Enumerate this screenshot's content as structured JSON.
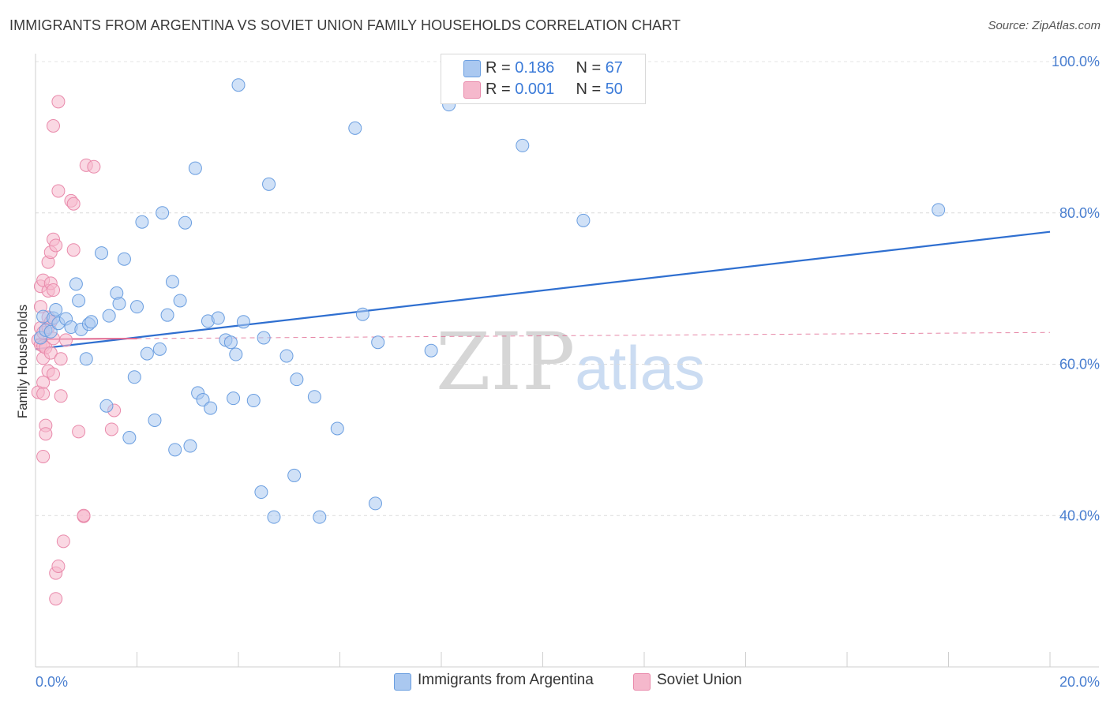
{
  "title": "IMMIGRANTS FROM ARGENTINA VS SOVIET UNION FAMILY HOUSEHOLDS CORRELATION CHART",
  "source": "Source: ZipAtlas.com",
  "watermark": {
    "zip": "ZIP",
    "atlas": "atlas"
  },
  "legend_box": {
    "rows": [
      {
        "r_label": "R = ",
        "r_value": "0.186",
        "n_label": "N = ",
        "n_value": "67"
      },
      {
        "r_label": "R = ",
        "r_value": "0.001",
        "n_label": "N = ",
        "n_value": "50"
      }
    ]
  },
  "bottom_legend": [
    "Immigrants from Argentina",
    "Soviet Union"
  ],
  "chart_data": {
    "type": "scatter",
    "title": "IMMIGRANTS FROM ARGENTINA VS SOVIET UNION FAMILY HOUSEHOLDS CORRELATION CHART",
    "xlabel": "",
    "ylabel": "Family Households",
    "xlim": [
      0,
      20
    ],
    "ylim": [
      20,
      100
    ],
    "x_tick_labels": [
      "0.0%",
      "20.0%"
    ],
    "y_tick_labels": [
      "40.0%",
      "60.0%",
      "80.0%",
      "100.0%"
    ],
    "y_ticks": [
      40,
      60,
      80,
      100
    ],
    "grid": true,
    "legend_placement": "top-center",
    "colors": {
      "argentina_fill": "#aac8f0",
      "argentina_stroke": "#6a9ee0",
      "argentina_line": "#2f6fd0",
      "soviet_fill": "#f5b8cc",
      "soviet_stroke": "#e98aab",
      "soviet_line": "#e06890",
      "tick_text": "#4a7fd0"
    },
    "series": [
      {
        "name": "Immigrants from Argentina",
        "R": 0.186,
        "N": 67,
        "trend": {
          "x": [
            0,
            20
          ],
          "y": [
            62.0,
            77.5
          ]
        },
        "points": [
          [
            0.1,
            63.5
          ],
          [
            0.15,
            66.3
          ],
          [
            0.2,
            64.5
          ],
          [
            0.3,
            64.3
          ],
          [
            0.35,
            66.1
          ],
          [
            0.4,
            67.2
          ],
          [
            0.45,
            65.4
          ],
          [
            0.6,
            66.0
          ],
          [
            0.7,
            64.9
          ],
          [
            0.8,
            70.6
          ],
          [
            0.85,
            68.4
          ],
          [
            0.9,
            64.6
          ],
          [
            1.0,
            60.7
          ],
          [
            1.05,
            65.3
          ],
          [
            1.1,
            65.6
          ],
          [
            1.3,
            74.7
          ],
          [
            1.4,
            54.5
          ],
          [
            1.45,
            66.4
          ],
          [
            1.6,
            69.4
          ],
          [
            1.65,
            68.0
          ],
          [
            1.75,
            73.9
          ],
          [
            1.85,
            50.3
          ],
          [
            1.95,
            58.3
          ],
          [
            2.0,
            67.6
          ],
          [
            2.1,
            78.8
          ],
          [
            2.2,
            61.4
          ],
          [
            2.35,
            52.6
          ],
          [
            2.45,
            62.0
          ],
          [
            2.5,
            80.0
          ],
          [
            2.6,
            66.5
          ],
          [
            2.7,
            70.9
          ],
          [
            2.75,
            48.7
          ],
          [
            2.85,
            68.4
          ],
          [
            2.95,
            78.7
          ],
          [
            3.05,
            49.2
          ],
          [
            3.15,
            85.9
          ],
          [
            3.2,
            56.2
          ],
          [
            3.3,
            55.3
          ],
          [
            3.4,
            65.7
          ],
          [
            3.45,
            54.2
          ],
          [
            3.6,
            66.1
          ],
          [
            3.75,
            63.2
          ],
          [
            3.85,
            62.9
          ],
          [
            3.9,
            55.5
          ],
          [
            3.95,
            61.3
          ],
          [
            4.0,
            96.9
          ],
          [
            4.1,
            65.6
          ],
          [
            4.3,
            55.2
          ],
          [
            4.45,
            43.1
          ],
          [
            4.5,
            63.5
          ],
          [
            4.6,
            83.8
          ],
          [
            4.7,
            39.8
          ],
          [
            4.95,
            61.1
          ],
          [
            5.1,
            45.3
          ],
          [
            5.15,
            58.0
          ],
          [
            5.5,
            55.7
          ],
          [
            5.6,
            39.8
          ],
          [
            5.95,
            51.5
          ],
          [
            6.3,
            91.2
          ],
          [
            6.45,
            66.6
          ],
          [
            6.7,
            41.6
          ],
          [
            6.75,
            62.9
          ],
          [
            7.8,
            61.8
          ],
          [
            8.15,
            94.3
          ],
          [
            9.6,
            88.9
          ],
          [
            10.8,
            79.0
          ],
          [
            17.8,
            80.4
          ]
        ]
      },
      {
        "name": "Soviet Union",
        "R": 0.001,
        "N": 50,
        "trend": {
          "x": [
            0,
            20
          ],
          "y": [
            63.3,
            64.2
          ]
        },
        "points": [
          [
            0.05,
            63.2
          ],
          [
            0.05,
            56.3
          ],
          [
            0.1,
            62.6
          ],
          [
            0.1,
            64.8
          ],
          [
            0.1,
            67.6
          ],
          [
            0.1,
            70.3
          ],
          [
            0.15,
            71.1
          ],
          [
            0.15,
            57.6
          ],
          [
            0.15,
            56.1
          ],
          [
            0.15,
            62.4
          ],
          [
            0.15,
            60.8
          ],
          [
            0.15,
            64.2
          ],
          [
            0.15,
            47.8
          ],
          [
            0.2,
            62.2
          ],
          [
            0.2,
            51.9
          ],
          [
            0.2,
            50.8
          ],
          [
            0.25,
            64.9
          ],
          [
            0.25,
            59.1
          ],
          [
            0.25,
            69.7
          ],
          [
            0.25,
            73.5
          ],
          [
            0.25,
            66.2
          ],
          [
            0.3,
            70.7
          ],
          [
            0.3,
            74.8
          ],
          [
            0.3,
            65.6
          ],
          [
            0.3,
            61.5
          ],
          [
            0.35,
            76.5
          ],
          [
            0.35,
            63.4
          ],
          [
            0.35,
            91.5
          ],
          [
            0.35,
            69.8
          ],
          [
            0.35,
            58.7
          ],
          [
            0.4,
            75.7
          ],
          [
            0.4,
            29.0
          ],
          [
            0.4,
            32.4
          ],
          [
            0.45,
            94.7
          ],
          [
            0.45,
            82.9
          ],
          [
            0.45,
            33.3
          ],
          [
            0.5,
            55.8
          ],
          [
            0.5,
            60.7
          ],
          [
            0.55,
            36.6
          ],
          [
            0.6,
            63.2
          ],
          [
            0.7,
            81.6
          ],
          [
            0.75,
            81.2
          ],
          [
            0.75,
            75.1
          ],
          [
            0.85,
            51.1
          ],
          [
            0.95,
            39.9
          ],
          [
            0.95,
            40.0
          ],
          [
            1.0,
            86.3
          ],
          [
            1.15,
            86.1
          ],
          [
            1.5,
            51.4
          ],
          [
            1.55,
            53.9
          ]
        ]
      }
    ]
  }
}
